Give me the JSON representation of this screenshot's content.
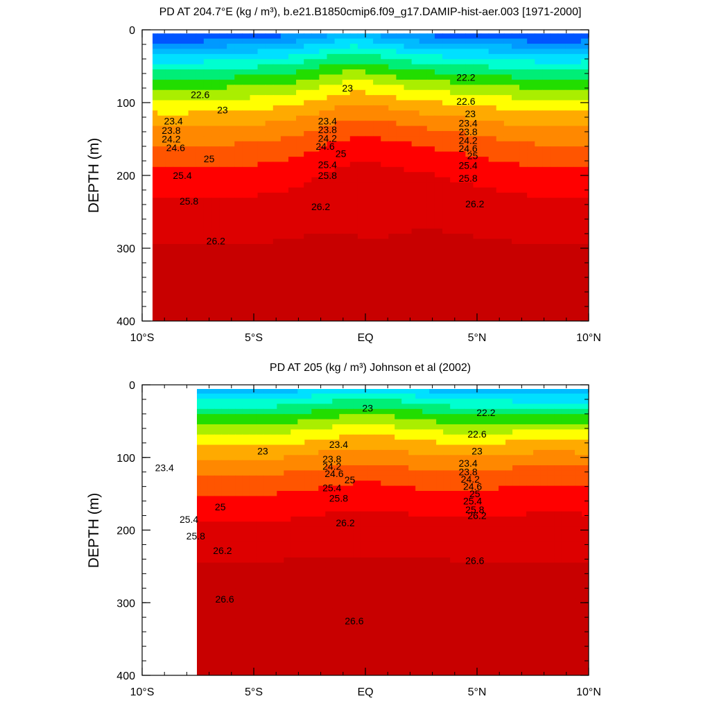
{
  "chart_data": [
    {
      "type": "heatmap",
      "title": "PD AT 204.7°E (kg / m³), b.e21.B1850cmip6.f09_g17.DAMIP-hist-aer.003 [1971-2000]",
      "ylabel": "DEPTH (m)",
      "xlim": [
        -10,
        10
      ],
      "ylim": [
        400,
        0
      ],
      "x_ticks": [
        -10,
        -5,
        0,
        5,
        10
      ],
      "x_tick_labels": [
        "10°S",
        "5°S",
        "EQ",
        "5°N",
        "10°N"
      ],
      "y_ticks": [
        0,
        100,
        200,
        300,
        400
      ],
      "y_tick_labels": [
        "0",
        "100",
        "200",
        "300",
        "400"
      ],
      "data_x_range": [
        -10,
        10
      ],
      "data_y_range": [
        5,
        400
      ],
      "colorscale": {
        "levels": [
          21.4,
          21.8,
          22.2,
          22.6,
          23.0,
          23.4,
          23.8,
          24.2,
          24.6,
          25.0,
          25.4,
          25.8,
          26.2,
          26.6
        ],
        "colors": [
          "#ff00ff",
          "#cc00ff",
          "#7a1fff",
          "#0000ff",
          "#0055ff",
          "#0099ff",
          "#00bbff",
          "#00e0ff",
          "#00ffd0",
          "#00ee77",
          "#22dd00",
          "#aaee00",
          "#ffff00",
          "#ffaa00",
          "#ff8800",
          "#ff5500",
          "#ff0000",
          "#dd0000",
          "#c80000"
        ]
      },
      "contour_labels": [
        {
          "text": "22.2",
          "x": 4.5,
          "y": 65
        },
        {
          "text": "22.6",
          "x": -7.4,
          "y": 89
        },
        {
          "text": "22.6",
          "x": 4.5,
          "y": 98
        },
        {
          "text": "23",
          "x": -6.4,
          "y": 110
        },
        {
          "text": "23",
          "x": -0.8,
          "y": 80
        },
        {
          "text": "23",
          "x": 4.7,
          "y": 115
        },
        {
          "text": "23.4",
          "x": -8.6,
          "y": 125
        },
        {
          "text": "23.8",
          "x": -8.7,
          "y": 138
        },
        {
          "text": "24.2",
          "x": -8.7,
          "y": 150
        },
        {
          "text": "24.6",
          "x": -8.5,
          "y": 162
        },
        {
          "text": "23.4",
          "x": -1.7,
          "y": 125
        },
        {
          "text": "23.8",
          "x": -1.7,
          "y": 137
        },
        {
          "text": "24.2",
          "x": -1.7,
          "y": 149
        },
        {
          "text": "24.6",
          "x": -1.8,
          "y": 160
        },
        {
          "text": "25",
          "x": -1.1,
          "y": 170
        },
        {
          "text": "23.4",
          "x": 4.6,
          "y": 128
        },
        {
          "text": "23.8",
          "x": 4.6,
          "y": 140
        },
        {
          "text": "24.2",
          "x": 4.6,
          "y": 152
        },
        {
          "text": "24.6",
          "x": 4.6,
          "y": 163
        },
        {
          "text": "25",
          "x": 4.8,
          "y": 173
        },
        {
          "text": "25.4",
          "x": 4.6,
          "y": 186
        },
        {
          "text": "25.8",
          "x": 4.6,
          "y": 204
        },
        {
          "text": "25",
          "x": -7.0,
          "y": 177
        },
        {
          "text": "25.4",
          "x": -8.2,
          "y": 200
        },
        {
          "text": "25.4",
          "x": -1.7,
          "y": 185
        },
        {
          "text": "25.8",
          "x": -1.7,
          "y": 200
        },
        {
          "text": "25.8",
          "x": -7.9,
          "y": 235
        },
        {
          "text": "26.2",
          "x": -2.0,
          "y": 243
        },
        {
          "text": "26.2",
          "x": 4.9,
          "y": 239
        },
        {
          "text": "26.2",
          "x": -6.7,
          "y": 290
        }
      ]
    },
    {
      "type": "heatmap",
      "title": "PD AT 205 (kg / m³) Johnson et al (2002)",
      "ylabel": "DEPTH (m)",
      "xlim": [
        -10,
        10
      ],
      "ylim": [
        400,
        0
      ],
      "x_ticks": [
        -10,
        -5,
        0,
        5,
        10
      ],
      "x_tick_labels": [
        "10°S",
        "5°S",
        "EQ",
        "5°N",
        "10°N"
      ],
      "y_ticks": [
        0,
        100,
        200,
        300,
        400
      ],
      "y_tick_labels": [
        "0",
        "100",
        "200",
        "300",
        "400"
      ],
      "data_x_range": [
        -8,
        10
      ],
      "data_y_range": [
        5,
        400
      ],
      "colorscale": {
        "levels": [
          21.4,
          21.8,
          22.2,
          22.6,
          23.0,
          23.4,
          23.8,
          24.2,
          24.6,
          25.0,
          25.4,
          25.8,
          26.2,
          26.6
        ],
        "colors": [
          "#ff00ff",
          "#cc00ff",
          "#7a1fff",
          "#0000ff",
          "#0055ff",
          "#0099ff",
          "#00bbff",
          "#00e0ff",
          "#00ffd0",
          "#00ee77",
          "#22dd00",
          "#aaee00",
          "#ffff00",
          "#ffaa00",
          "#ff8800",
          "#ff5500",
          "#ff0000",
          "#dd0000",
          "#c80000"
        ]
      },
      "contour_labels": [
        {
          "text": "23",
          "x": 0.1,
          "y": 32
        },
        {
          "text": "22.2",
          "x": 5.4,
          "y": 38
        },
        {
          "text": "22.6",
          "x": 5.0,
          "y": 68
        },
        {
          "text": "23.4",
          "x": -1.2,
          "y": 82
        },
        {
          "text": "23",
          "x": -4.6,
          "y": 91
        },
        {
          "text": "23",
          "x": 5.0,
          "y": 91
        },
        {
          "text": "23.4",
          "x": -9.0,
          "y": 114
        },
        {
          "text": "23.8",
          "x": -1.5,
          "y": 102
        },
        {
          "text": "24.2",
          "x": -1.5,
          "y": 112
        },
        {
          "text": "24.6",
          "x": -1.4,
          "y": 122
        },
        {
          "text": "25",
          "x": -0.7,
          "y": 131
        },
        {
          "text": "25.4",
          "x": -1.5,
          "y": 142
        },
        {
          "text": "25.8",
          "x": -1.2,
          "y": 156
        },
        {
          "text": "23.4",
          "x": 4.6,
          "y": 108
        },
        {
          "text": "23.8",
          "x": 4.6,
          "y": 120
        },
        {
          "text": "24.2",
          "x": 4.7,
          "y": 130
        },
        {
          "text": "24.6",
          "x": 4.8,
          "y": 140
        },
        {
          "text": "25",
          "x": 4.9,
          "y": 150
        },
        {
          "text": "25.4",
          "x": 4.8,
          "y": 160
        },
        {
          "text": "25.8",
          "x": 4.9,
          "y": 172
        },
        {
          "text": "25",
          "x": -6.5,
          "y": 168
        },
        {
          "text": "25.4",
          "x": -7.9,
          "y": 185
        },
        {
          "text": "25.8",
          "x": -7.6,
          "y": 208
        },
        {
          "text": "26.2",
          "x": -6.4,
          "y": 228
        },
        {
          "text": "26.2",
          "x": -0.9,
          "y": 190
        },
        {
          "text": "26.2",
          "x": 5.0,
          "y": 180
        },
        {
          "text": "26.6",
          "x": 4.9,
          "y": 242
        },
        {
          "text": "26.6",
          "x": -6.3,
          "y": 295
        },
        {
          "text": "26.6",
          "x": -0.5,
          "y": 325
        }
      ]
    }
  ]
}
